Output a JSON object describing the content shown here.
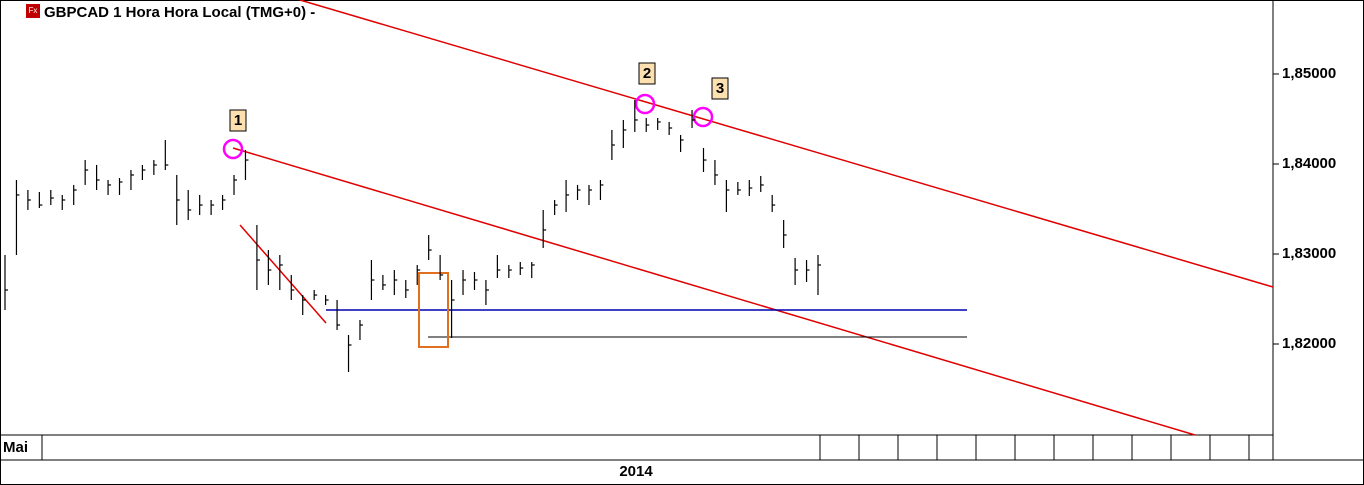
{
  "chart_data": {
    "type": "ohlc",
    "icon": "Fx",
    "title": "GBPCAD 1 Hora Hora Local (TMG+0)  -",
    "x_labels": [
      "Mai",
      "2014"
    ],
    "annotations": [
      "1",
      "2",
      "3"
    ],
    "color": "#000000",
    "ylim": [
      1.80989,
      1.85822
    ],
    "yticks": [
      {
        "value": 1.82,
        "label": "1,82000"
      },
      {
        "value": 1.83,
        "label": "1,83000"
      },
      {
        "value": 1.84,
        "label": "1,84000"
      },
      {
        "value": 1.85,
        "label": "1,85000"
      }
    ],
    "high": [
      1.82989,
      1.83822,
      1.83711,
      1.83689,
      1.83711,
      1.83656,
      1.83767,
      1.84044,
      1.83989,
      1.83822,
      1.83844,
      1.83933,
      1.83989,
      1.84044,
      1.84267,
      1.83878,
      1.83711,
      1.83656,
      1.836,
      1.83656,
      1.83878,
      1.84156,
      1.83322,
      1.83044,
      1.82989,
      1.82767,
      1.82544,
      1.826,
      1.82544,
      1.82489,
      1.821,
      1.82267,
      1.82933,
      1.82767,
      1.82822,
      1.82711,
      1.82878,
      1.83211,
      1.82989,
      1.82711,
      1.82822,
      1.828,
      1.82711,
      1.82989,
      1.82878,
      1.82911,
      1.82911,
      1.83489,
      1.836,
      1.83822,
      1.83767,
      1.83767,
      1.83822,
      1.84378,
      1.84489,
      1.84711,
      1.84511,
      1.84511,
      1.84467,
      1.84322,
      1.846,
      1.84178,
      1.84044,
      1.83822,
      1.838,
      1.83822,
      1.83867,
      1.83656,
      1.83378,
      1.82956,
      1.82933,
      1.82989
    ],
    "low": [
      1.82378,
      1.82989,
      1.83489,
      1.83511,
      1.83544,
      1.83489,
      1.83544,
      1.83767,
      1.83711,
      1.83656,
      1.83656,
      1.83711,
      1.83822,
      1.83878,
      1.83933,
      1.83322,
      1.83378,
      1.83433,
      1.83433,
      1.83489,
      1.83656,
      1.83822,
      1.826,
      1.82656,
      1.826,
      1.82489,
      1.82322,
      1.82489,
      1.82433,
      1.82156,
      1.81689,
      1.82044,
      1.82489,
      1.826,
      1.82544,
      1.82511,
      1.82656,
      1.82933,
      1.82711,
      1.82067,
      1.82544,
      1.826,
      1.82433,
      1.82733,
      1.82733,
      1.82767,
      1.82733,
      1.83067,
      1.83433,
      1.83467,
      1.836,
      1.83544,
      1.836,
      1.84044,
      1.84178,
      1.84356,
      1.84356,
      1.84378,
      1.84322,
      1.84133,
      1.844,
      1.83911,
      1.83767,
      1.83467,
      1.83656,
      1.83644,
      1.83689,
      1.83467,
      1.83067,
      1.82656,
      1.82689,
      1.82544
    ],
    "close": [
      1.826,
      1.83656,
      1.836,
      1.83544,
      1.83622,
      1.836,
      1.83711,
      1.83933,
      1.83822,
      1.83767,
      1.838,
      1.83878,
      1.83933,
      1.83989,
      1.83989,
      1.836,
      1.83489,
      1.83544,
      1.83544,
      1.836,
      1.83822,
      1.84044,
      1.82933,
      1.82822,
      1.82878,
      1.826,
      1.82489,
      1.82544,
      1.82489,
      1.82211,
      1.81989,
      1.82211,
      1.82711,
      1.82656,
      1.82711,
      1.826,
      1.82822,
      1.83044,
      1.82767,
      1.82489,
      1.82711,
      1.82711,
      1.826,
      1.82822,
      1.82822,
      1.82844,
      1.82878,
      1.83267,
      1.83544,
      1.83656,
      1.83711,
      1.83711,
      1.83767,
      1.84211,
      1.84378,
      1.84489,
      1.84433,
      1.84467,
      1.844,
      1.84267,
      1.84489,
      1.84044,
      1.83878,
      1.83711,
      1.83711,
      1.83733,
      1.83767,
      1.83544,
      1.83211,
      1.82822,
      1.82822,
      1.82878
    ]
  }
}
